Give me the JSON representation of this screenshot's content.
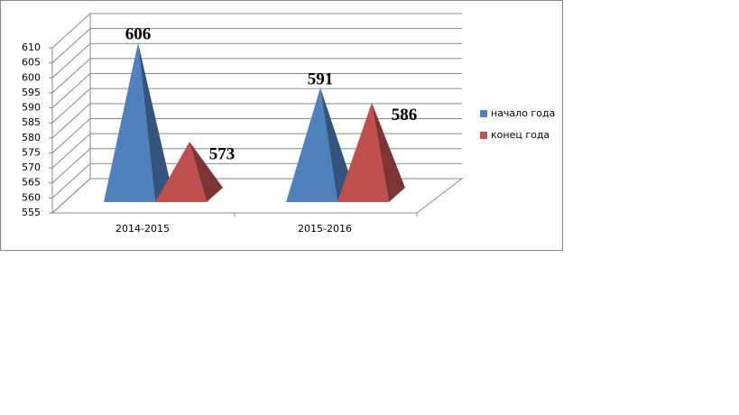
{
  "chart_data": {
    "type": "pyramid3d",
    "categories": [
      "2014-2015",
      "2015-2016"
    ],
    "series": [
      {
        "name": "начало года",
        "color": "#4f81bd",
        "values": [
          606,
          591
        ]
      },
      {
        "name": "конец года",
        "color": "#c0504d",
        "values": [
          573,
          586
        ]
      }
    ],
    "ylim": [
      555,
      610
    ],
    "yticks": [
      555,
      560,
      565,
      570,
      575,
      580,
      585,
      590,
      595,
      600,
      605,
      610
    ],
    "grid": true,
    "legend": "right"
  }
}
